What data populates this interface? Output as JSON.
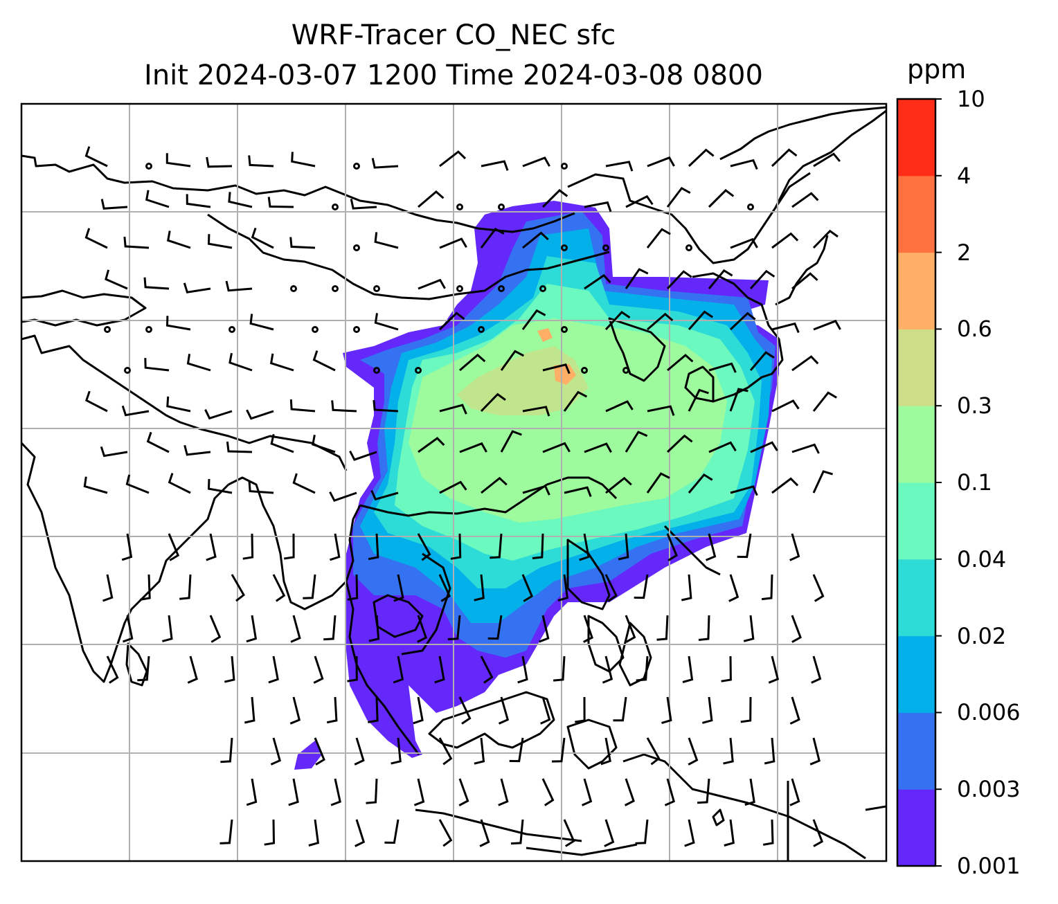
{
  "title": {
    "line1": "WRF-Tracer CO_NEC sfc",
    "line2": "Init 2024-03-07 1200 Time 2024-03-08 0800"
  },
  "colorbar": {
    "unit": "ppm",
    "levels": [
      "0.001",
      "0.003",
      "0.006",
      "0.02",
      "0.04",
      "0.1",
      "0.3",
      "0.6",
      "2",
      "4",
      "10"
    ],
    "colors": [
      "#6428fa",
      "#3472f2",
      "#04b0ea",
      "#2ddcd6",
      "#6cf9bf",
      "#9dfa9d",
      "#cede88",
      "#ffb066",
      "#ff7240",
      "#ff2c18"
    ]
  },
  "map": {
    "ocean": "#ffffff",
    "coastline": "#000000",
    "gridline": "#b0b0b0"
  }
}
